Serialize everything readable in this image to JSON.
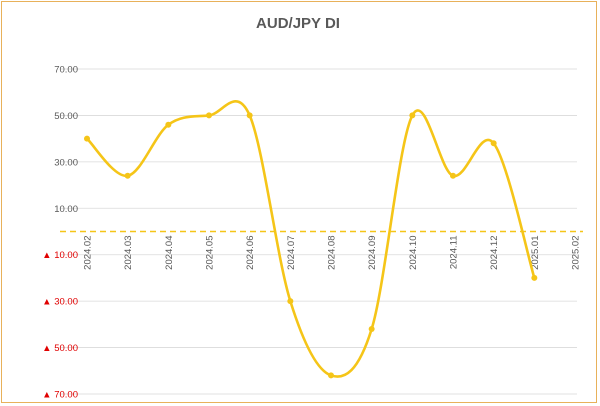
{
  "chart_data": {
    "type": "line",
    "title": "AUD/JPY  DI",
    "xlabel": "",
    "ylabel": "",
    "categories": [
      "2024.02",
      "2024.03",
      "2024.04",
      "2024.05",
      "2024.06",
      "2024.07",
      "2024.08",
      "2024.09",
      "2024.10",
      "2024.11",
      "2024.12",
      "2025.01",
      "2025.02"
    ],
    "series": [
      {
        "values": [
          40,
          24,
          46,
          50,
          50,
          -30,
          -62,
          -42,
          50,
          24,
          38,
          -20,
          null
        ]
      }
    ],
    "y_ticks": [
      {
        "value": 70,
        "label": "70.00",
        "negative": false
      },
      {
        "value": 50,
        "label": "50.00",
        "negative": false
      },
      {
        "value": 30,
        "label": "30.00",
        "negative": false
      },
      {
        "value": 10,
        "label": "10.00",
        "negative": false
      },
      {
        "value": -10,
        "label": "▲ 10.00",
        "negative": true
      },
      {
        "value": -30,
        "label": "▲ 30.00",
        "negative": true
      },
      {
        "value": -50,
        "label": "▲ 50.00",
        "negative": true
      },
      {
        "value": -70,
        "label": "▲ 70.00",
        "negative": true
      }
    ],
    "ylim": [
      -70,
      70
    ],
    "reference_line": 0,
    "grid": true,
    "legend": "none",
    "colors": {
      "line": "#f5c518",
      "marker": "#f5c518",
      "reference": "#f5c518",
      "grid": "#d9d9d9",
      "negative_label": "#e00000",
      "positive_label": "#595959",
      "border": "#e8b15a"
    }
  }
}
